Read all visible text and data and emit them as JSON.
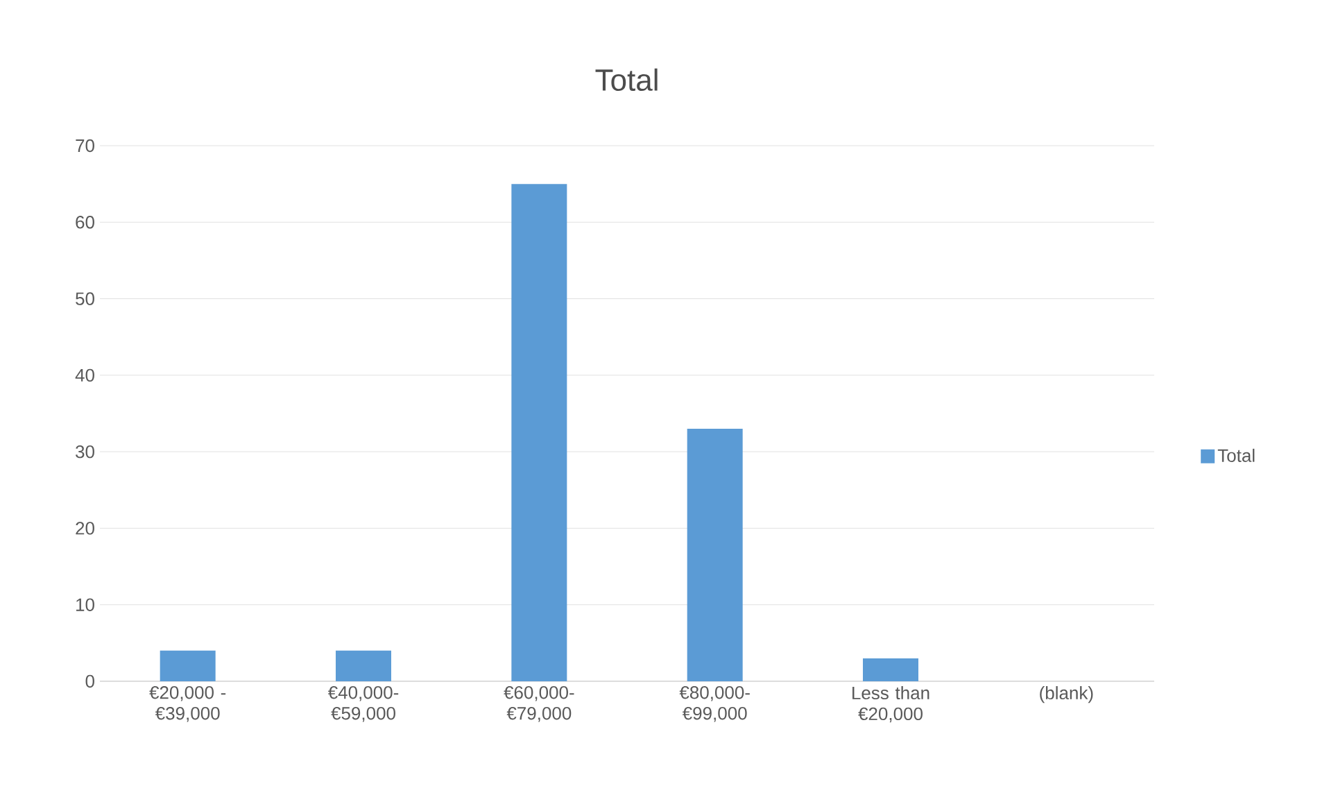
{
  "chart_data": {
    "type": "bar",
    "title": "Total",
    "categories": [
      "€20,000 - €39,000",
      "€40,000- €59,000",
      "€60,000- €79,000",
      "€80,000- €99,000",
      "Less than €20,000",
      "(blank)"
    ],
    "series": [
      {
        "name": "Total",
        "color": "#5b9bd5",
        "values": [
          4,
          4,
          65,
          33,
          3,
          null
        ]
      }
    ],
    "ylim": [
      0,
      70
    ],
    "yticks": [
      0,
      10,
      20,
      30,
      40,
      50,
      60,
      70
    ],
    "grid": "y",
    "legend": "right"
  }
}
